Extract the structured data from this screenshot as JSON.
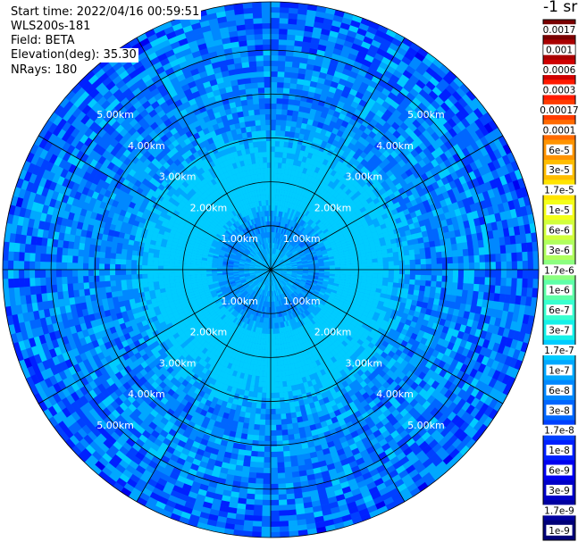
{
  "header": {
    "start_time": "Start time: 2022/04/16 00:59:51",
    "instrument": "WLS200s-181",
    "field": "Field: BETA",
    "elevation": "Elevation(deg): 35.30",
    "nrays": "NRays: 180"
  },
  "chart_data": {
    "type": "heatmap",
    "projection": "polar-ppi",
    "field": "BETA",
    "units": "-1 sr",
    "ray_count": 180,
    "range_rings_km": [
      1,
      2,
      3,
      4,
      5
    ],
    "range_ring_labels": [
      "1.00km",
      "2.00km",
      "3.00km",
      "4.00km",
      "5.00km"
    ],
    "azimuth_spokes_deg": [
      0,
      30,
      60,
      90,
      120,
      150,
      180,
      210,
      240,
      270,
      300,
      330
    ],
    "max_range_km": 6.1,
    "colorbar": {
      "labels": [
        "0.0017",
        "0.001",
        "0.0006",
        "0.0003",
        "0.00017",
        "0.0001",
        "6e-5",
        "3e-5",
        "1.7e-5",
        "1e-5",
        "6e-6",
        "3e-6",
        "1.7e-6",
        "1e-6",
        "6e-7",
        "3e-7",
        "1.7e-7",
        "1e-7",
        "6e-8",
        "3e-8",
        "1.7e-8",
        "1e-8",
        "6e-9",
        "3e-9",
        "1.7e-9",
        "1e-9"
      ],
      "colors": [
        "#7a0000",
        "#aa0000",
        "#d00000",
        "#ff1a00",
        "#ff3b00",
        "#ff6a00",
        "#ff9400",
        "#ffbd00",
        "#ffe400",
        "#f4ff1a",
        "#d2ff3c",
        "#b0ff5e",
        "#8cff80",
        "#5effa8",
        "#38ffd0",
        "#14f0e8",
        "#00ccff",
        "#00a8ff",
        "#0088ff",
        "#0066ff",
        "#0040ff",
        "#0020ff",
        "#0000f0",
        "#0000c8",
        "#0000a0",
        "#000078"
      ]
    },
    "radial_profile": [
      {
        "range_km": 0.0,
        "value": "1.7e-7"
      },
      {
        "range_km": 0.6,
        "value": "1e-7"
      },
      {
        "range_km": 1.0,
        "value": "6e-8"
      },
      {
        "range_km": 1.3,
        "value": "1e-7"
      },
      {
        "range_km": 1.6,
        "value": "3e-7"
      },
      {
        "range_km": 2.2,
        "value": "3e-7"
      },
      {
        "range_km": 2.8,
        "value": "1.7e-7"
      },
      {
        "range_km": 3.5,
        "value": "6e-8"
      },
      {
        "range_km": 4.5,
        "value": "6e-8"
      },
      {
        "range_km": 6.0,
        "value": "3e-8"
      }
    ]
  }
}
